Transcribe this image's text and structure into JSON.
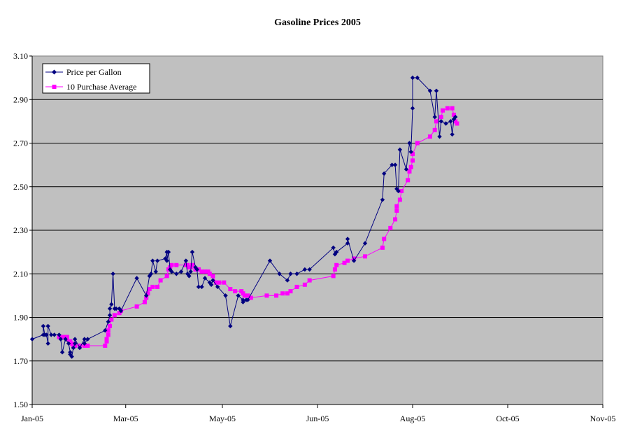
{
  "chart_data": {
    "type": "line",
    "title": "Gasoline Prices 2005",
    "xlabel": "",
    "ylabel": "",
    "x_tick_labels": [
      "Jan-05",
      "Mar-05",
      "May-05",
      "Jun-05",
      "Aug-05",
      "Oct-05",
      "Nov-05"
    ],
    "x_tick_dates": [
      "2005-01-01",
      "2005-03-01",
      "2005-05-01",
      "2005-06-30",
      "2005-08-29",
      "2005-10-28",
      "2005-12-27"
    ],
    "xlim": [
      "2005-01-01",
      "2005-12-27"
    ],
    "y_tick_labels": [
      "1.50",
      "1.70",
      "1.90",
      "2.10",
      "2.30",
      "2.50",
      "2.70",
      "2.90",
      "3.10"
    ],
    "ylim": [
      1.5,
      3.1
    ],
    "grid": "horizontal",
    "legend_position": "top-left",
    "series": [
      {
        "name": "Price per Gallon",
        "color": "#000080",
        "marker": "diamond",
        "points": [
          [
            "2005-01-01",
            1.8
          ],
          [
            "2005-01-08",
            1.82
          ],
          [
            "2005-01-08",
            1.86
          ],
          [
            "2005-01-09",
            1.82
          ],
          [
            "2005-01-10",
            1.82
          ],
          [
            "2005-01-11",
            1.78
          ],
          [
            "2005-01-11",
            1.86
          ],
          [
            "2005-01-13",
            1.82
          ],
          [
            "2005-01-15",
            1.82
          ],
          [
            "2005-01-18",
            1.82
          ],
          [
            "2005-01-19",
            1.8
          ],
          [
            "2005-01-20",
            1.74
          ],
          [
            "2005-01-22",
            1.8
          ],
          [
            "2005-01-24",
            1.78
          ],
          [
            "2005-01-25",
            1.74
          ],
          [
            "2005-01-25",
            1.73
          ],
          [
            "2005-01-26",
            1.72
          ],
          [
            "2005-01-27",
            1.76
          ],
          [
            "2005-01-28",
            1.78
          ],
          [
            "2005-01-28",
            1.8
          ],
          [
            "2005-01-31",
            1.76
          ],
          [
            "2005-02-03",
            1.8
          ],
          [
            "2005-02-03",
            1.78
          ],
          [
            "2005-02-05",
            1.8
          ],
          [
            "2005-02-16",
            1.84
          ],
          [
            "2005-02-18",
            1.88
          ],
          [
            "2005-02-19",
            1.91
          ],
          [
            "2005-02-19",
            1.94
          ],
          [
            "2005-02-20",
            1.96
          ],
          [
            "2005-02-21",
            2.1
          ],
          [
            "2005-02-22",
            1.94
          ],
          [
            "2005-02-23",
            1.94
          ],
          [
            "2005-02-25",
            1.94
          ],
          [
            "2005-02-26",
            1.93
          ],
          [
            "2005-03-08",
            2.08
          ],
          [
            "2005-03-14",
            2.0
          ],
          [
            "2005-03-16",
            2.09
          ],
          [
            "2005-03-17",
            2.1
          ],
          [
            "2005-03-18",
            2.16
          ],
          [
            "2005-03-20",
            2.11
          ],
          [
            "2005-03-21",
            2.16
          ],
          [
            "2005-03-26",
            2.17
          ],
          [
            "2005-03-27",
            2.2
          ],
          [
            "2005-03-27",
            2.16
          ],
          [
            "2005-03-28",
            2.2
          ],
          [
            "2005-03-29",
            2.12
          ],
          [
            "2005-03-30",
            2.11
          ],
          [
            "2005-04-02",
            2.1
          ],
          [
            "2005-04-05",
            2.11
          ],
          [
            "2005-04-08",
            2.16
          ],
          [
            "2005-04-09",
            2.1
          ],
          [
            "2005-04-10",
            2.09
          ],
          [
            "2005-04-11",
            2.11
          ],
          [
            "2005-04-12",
            2.2
          ],
          [
            "2005-04-14",
            2.13
          ],
          [
            "2005-04-15",
            2.12
          ],
          [
            "2005-04-16",
            2.04
          ],
          [
            "2005-04-18",
            2.04
          ],
          [
            "2005-04-20",
            2.08
          ],
          [
            "2005-04-23",
            2.06
          ],
          [
            "2005-04-24",
            2.05
          ],
          [
            "2005-04-25",
            2.07
          ],
          [
            "2005-04-28",
            2.04
          ],
          [
            "2005-05-03",
            2.0
          ],
          [
            "2005-05-06",
            1.86
          ],
          [
            "2005-05-11",
            2.0
          ],
          [
            "2005-05-14",
            1.98
          ],
          [
            "2005-05-14",
            1.97
          ],
          [
            "2005-05-16",
            1.98
          ],
          [
            "2005-05-17",
            1.98
          ],
          [
            "2005-05-31",
            2.16
          ],
          [
            "2005-06-06",
            2.1
          ],
          [
            "2005-06-11",
            2.07
          ],
          [
            "2005-06-13",
            2.1
          ],
          [
            "2005-06-17",
            2.1
          ],
          [
            "2005-06-22",
            2.12
          ],
          [
            "2005-06-25",
            2.12
          ],
          [
            "2005-07-10",
            2.22
          ],
          [
            "2005-07-11",
            2.19
          ],
          [
            "2005-07-12",
            2.2
          ],
          [
            "2005-07-19",
            2.24
          ],
          [
            "2005-07-19",
            2.26
          ],
          [
            "2005-07-23",
            2.16
          ],
          [
            "2005-07-30",
            2.24
          ],
          [
            "2005-08-10",
            2.44
          ],
          [
            "2005-08-11",
            2.56
          ],
          [
            "2005-08-16",
            2.6
          ],
          [
            "2005-08-18",
            2.6
          ],
          [
            "2005-08-19",
            2.49
          ],
          [
            "2005-08-20",
            2.48
          ],
          [
            "2005-08-21",
            2.67
          ],
          [
            "2005-08-25",
            2.58
          ],
          [
            "2005-08-27",
            2.7
          ],
          [
            "2005-08-28",
            2.66
          ],
          [
            "2005-08-29",
            2.86
          ],
          [
            "2005-08-29",
            3.0
          ],
          [
            "2005-09-01",
            3.0
          ],
          [
            "2005-09-09",
            2.94
          ],
          [
            "2005-09-12",
            2.82
          ],
          [
            "2005-09-13",
            2.94
          ],
          [
            "2005-09-15",
            2.73
          ],
          [
            "2005-09-16",
            2.8
          ],
          [
            "2005-09-19",
            2.79
          ],
          [
            "2005-09-22",
            2.8
          ],
          [
            "2005-09-23",
            2.74
          ],
          [
            "2005-09-24",
            2.81
          ],
          [
            "2005-09-25",
            2.82
          ]
        ]
      },
      {
        "name": "10 Purchase Average",
        "color": "#FF00FF",
        "marker": "square",
        "points": [
          [
            "2005-01-18",
            1.81
          ],
          [
            "2005-01-19",
            1.81
          ],
          [
            "2005-01-20",
            1.81
          ],
          [
            "2005-01-21",
            1.81
          ],
          [
            "2005-01-22",
            1.81
          ],
          [
            "2005-01-23",
            1.81
          ],
          [
            "2005-01-23",
            1.8
          ],
          [
            "2005-01-25",
            1.79
          ],
          [
            "2005-01-26",
            1.78
          ],
          [
            "2005-01-27",
            1.77
          ],
          [
            "2005-01-28",
            1.77
          ],
          [
            "2005-01-31",
            1.77
          ],
          [
            "2005-02-03",
            1.77
          ],
          [
            "2005-02-05",
            1.77
          ],
          [
            "2005-02-16",
            1.77
          ],
          [
            "2005-02-17",
            1.79
          ],
          [
            "2005-02-17",
            1.8
          ],
          [
            "2005-02-18",
            1.82
          ],
          [
            "2005-02-18",
            1.84
          ],
          [
            "2005-02-19",
            1.86
          ],
          [
            "2005-02-20",
            1.89
          ],
          [
            "2005-02-22",
            1.91
          ],
          [
            "2005-02-25",
            1.92
          ],
          [
            "2005-02-26",
            1.93
          ],
          [
            "2005-03-08",
            1.95
          ],
          [
            "2005-03-13",
            1.97
          ],
          [
            "2005-03-14",
            1.99
          ],
          [
            "2005-03-15",
            2.01
          ],
          [
            "2005-03-16",
            2.03
          ],
          [
            "2005-03-18",
            2.04
          ],
          [
            "2005-03-21",
            2.04
          ],
          [
            "2005-03-23",
            2.07
          ],
          [
            "2005-03-27",
            2.09
          ],
          [
            "2005-03-28",
            2.12
          ],
          [
            "2005-03-29",
            2.13
          ],
          [
            "2005-03-30",
            2.14
          ],
          [
            "2005-04-02",
            2.14
          ],
          [
            "2005-04-08",
            2.14
          ],
          [
            "2005-04-09",
            2.14
          ],
          [
            "2005-04-10",
            2.13
          ],
          [
            "2005-04-11",
            2.13
          ],
          [
            "2005-04-12",
            2.14
          ],
          [
            "2005-04-14",
            2.12
          ],
          [
            "2005-04-16",
            2.12
          ],
          [
            "2005-04-18",
            2.11
          ],
          [
            "2005-04-20",
            2.11
          ],
          [
            "2005-04-22",
            2.11
          ],
          [
            "2005-04-23",
            2.1
          ],
          [
            "2005-04-25",
            2.09
          ],
          [
            "2005-04-27",
            2.06
          ],
          [
            "2005-04-29",
            2.06
          ],
          [
            "2005-05-02",
            2.06
          ],
          [
            "2005-05-06",
            2.03
          ],
          [
            "2005-05-09",
            2.02
          ],
          [
            "2005-05-13",
            2.02
          ],
          [
            "2005-05-14",
            2.01
          ],
          [
            "2005-05-15",
            2.0
          ],
          [
            "2005-05-17",
            2.0
          ],
          [
            "2005-05-19",
            1.99
          ],
          [
            "2005-05-29",
            2.0
          ],
          [
            "2005-06-04",
            2.0
          ],
          [
            "2005-06-08",
            2.01
          ],
          [
            "2005-06-11",
            2.01
          ],
          [
            "2005-06-13",
            2.02
          ],
          [
            "2005-06-17",
            2.04
          ],
          [
            "2005-06-22",
            2.05
          ],
          [
            "2005-06-25",
            2.07
          ],
          [
            "2005-07-10",
            2.09
          ],
          [
            "2005-07-11",
            2.12
          ],
          [
            "2005-07-12",
            2.14
          ],
          [
            "2005-07-17",
            2.15
          ],
          [
            "2005-07-19",
            2.16
          ],
          [
            "2005-07-23",
            2.17
          ],
          [
            "2005-07-30",
            2.18
          ],
          [
            "2005-08-10",
            2.22
          ],
          [
            "2005-08-11",
            2.26
          ],
          [
            "2005-08-15",
            2.31
          ],
          [
            "2005-08-18",
            2.35
          ],
          [
            "2005-08-19",
            2.39
          ],
          [
            "2005-08-19",
            2.41
          ],
          [
            "2005-08-21",
            2.44
          ],
          [
            "2005-08-22",
            2.48
          ],
          [
            "2005-08-26",
            2.53
          ],
          [
            "2005-08-27",
            2.57
          ],
          [
            "2005-08-28",
            2.59
          ],
          [
            "2005-08-29",
            2.62
          ],
          [
            "2005-08-29",
            2.65
          ],
          [
            "2005-09-01",
            2.7
          ],
          [
            "2005-09-09",
            2.73
          ],
          [
            "2005-09-12",
            2.76
          ],
          [
            "2005-09-13",
            2.8
          ],
          [
            "2005-09-16",
            2.82
          ],
          [
            "2005-09-17",
            2.85
          ],
          [
            "2005-09-20",
            2.86
          ],
          [
            "2005-09-23",
            2.86
          ],
          [
            "2005-09-24",
            2.83
          ],
          [
            "2005-09-25",
            2.8
          ],
          [
            "2005-09-26",
            2.79
          ]
        ]
      }
    ]
  }
}
